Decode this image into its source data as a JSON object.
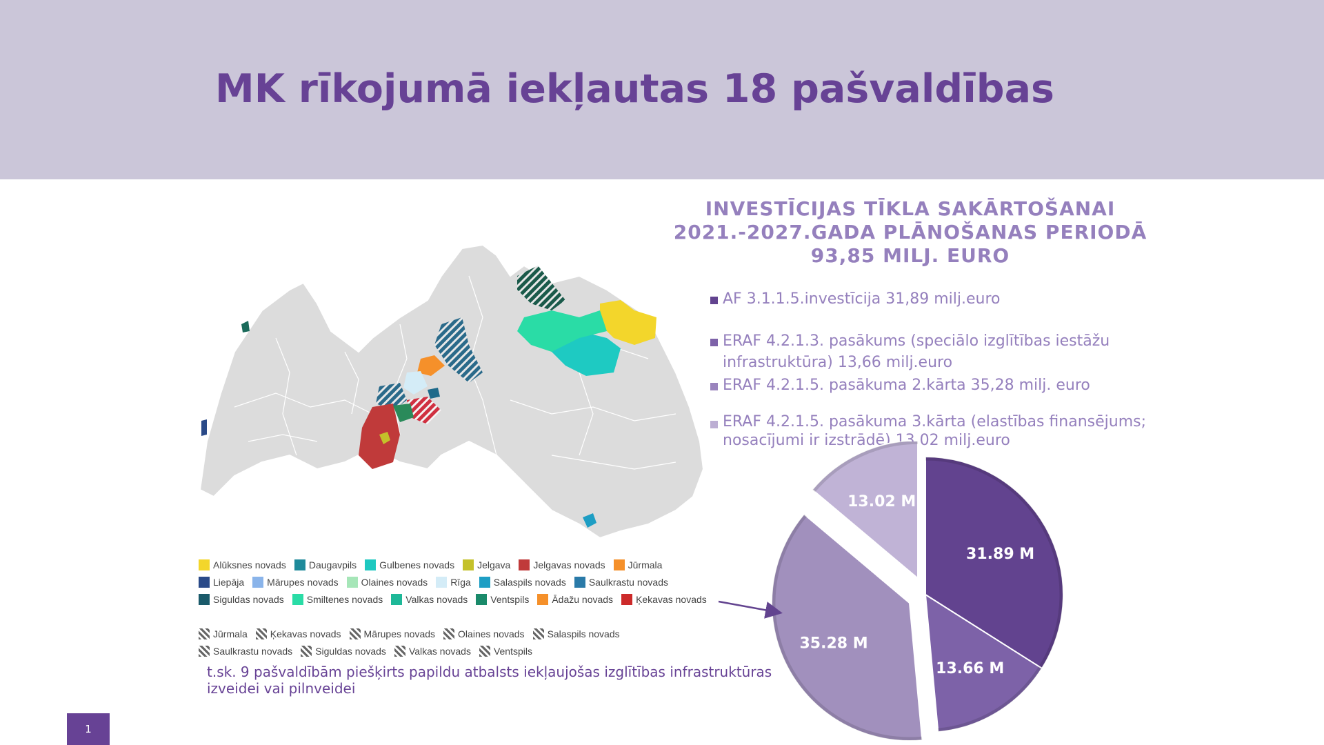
{
  "header": {
    "title": "MK rīkojumā iekļautas 18 pašvaldības"
  },
  "heading": {
    "lines": [
      "INVESTĪCIJAS TĪKLA SAKĀRTOŠANAI",
      "2021.-2027.GADA PLĀNOŠANAS PERIODĀ",
      "93,85 MILJ. EURO"
    ]
  },
  "bullets": [
    {
      "text": "AF 3.1.1.5.investīcija 31,89 milj.euro",
      "color": "#62438f"
    },
    {
      "text": "ERAF 4.2.1.3. pasākums (speciālo izglītības iestāžu infrastruktūra) 13,66 milj.euro",
      "color": "#7d62a8"
    },
    {
      "text": "ERAF 4.2.1.5. pasākuma 2.kārta 35,28 milj. euro",
      "color": "#9a84bd"
    },
    {
      "text": "ERAF 4.2.1.5. pasākuma 3.kārta (elastības finansējums; nosacījumi ir izstrādē) 13,02 milj.euro",
      "color": "#bcaed3"
    }
  ],
  "map": {
    "legend_solid": [
      {
        "label": "Alūksnes novads",
        "color": "#f3d62b"
      },
      {
        "label": "Daugavpils",
        "color": "#1e8a9a"
      },
      {
        "label": "Gulbenes novads",
        "color": "#1ec8c0"
      },
      {
        "label": "Jelgava",
        "color": "#c4c12a"
      },
      {
        "label": "Jelgavas novads",
        "color": "#c03a3a"
      },
      {
        "label": "Jūrmala",
        "color": "#f5902a"
      },
      {
        "label": "Liepāja",
        "color": "#2a4a88"
      },
      {
        "label": "Mārupes novads",
        "color": "#8ab4ea"
      },
      {
        "label": "Olaines novads",
        "color": "#a6e6b8"
      },
      {
        "label": "Rīga",
        "color": "#d4ecf7"
      },
      {
        "label": "Salaspils novads",
        "color": "#1e9ec4"
      },
      {
        "label": "Saulkrastu novads",
        "color": "#2a7aa8"
      },
      {
        "label": "Siguldas novads",
        "color": "#1a5a6a"
      },
      {
        "label": "Smiltenes novads",
        "color": "#2adca6"
      },
      {
        "label": "Valkas novads",
        "color": "#1eb898"
      },
      {
        "label": "Ventspils",
        "color": "#1a8a6a"
      },
      {
        "label": "Ādažu novads",
        "color": "#f5902a"
      },
      {
        "label": "Ķekavas novads",
        "color": "#cc2a2a"
      }
    ],
    "legend_hatched": [
      "Jūrmala",
      "Ķekavas novads",
      "Mārupes novads",
      "Olaines novads",
      "Salaspils novads",
      "Saulkrastu novads",
      "Siguldas novads",
      "Valkas novads",
      "Ventspils"
    ]
  },
  "note": "t.sk. 9 pašvaldībām piešķirts papildu atbalsts iekļaujošas izglītības infrastruktūras izveidei vai pilnveidei",
  "page_number": "1",
  "chart_data": {
    "type": "pie",
    "slices": [
      {
        "label": "31.89 M",
        "value": 31.89,
        "color": "#62438f"
      },
      {
        "label": "13.66 M",
        "value": 13.66,
        "color": "#7d62a8"
      },
      {
        "label": "35.28 M",
        "value": 35.28,
        "color": "#a190bd"
      },
      {
        "label": "13.02 M",
        "value": 13.02,
        "color": "#c0b3d6"
      }
    ],
    "exploded": [
      "35.28 M",
      "13.02 M"
    ]
  }
}
